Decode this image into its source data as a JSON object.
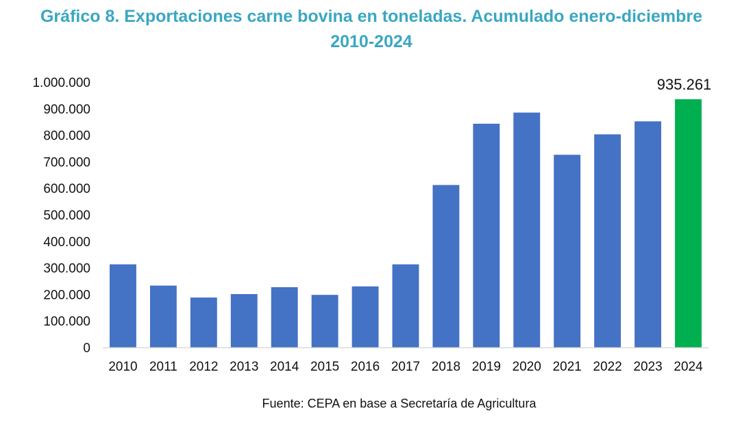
{
  "title": {
    "line1": "Gráfico 8. Exportaciones carne bovina en toneladas. Acumulado enero-diciembre",
    "line2": "2010-2024"
  },
  "source": "Fuente: CEPA en base a Secretaría de Agricultura",
  "colors": {
    "title": "#3aa7c2",
    "bar": "#4472c4",
    "highlight_bar": "#00b050",
    "axis": "#d9d9d9"
  },
  "chart_data": {
    "type": "bar",
    "categories": [
      "2010",
      "2011",
      "2012",
      "2013",
      "2014",
      "2015",
      "2016",
      "2017",
      "2018",
      "2019",
      "2020",
      "2021",
      "2022",
      "2023",
      "2024"
    ],
    "values": [
      313000,
      233000,
      188000,
      201000,
      227000,
      198000,
      230000,
      313000,
      612000,
      843000,
      885000,
      726000,
      803000,
      852000,
      935261
    ],
    "ylim": [
      0,
      1000000
    ],
    "yticks": [
      0,
      100000,
      200000,
      300000,
      400000,
      500000,
      600000,
      700000,
      800000,
      900000,
      1000000
    ],
    "ytick_labels": [
      "0",
      "100.000",
      "200.000",
      "300.000",
      "400.000",
      "500.000",
      "600.000",
      "700.000",
      "800.000",
      "900.000",
      "1.000.000"
    ],
    "highlight_index": 14,
    "data_labels": [
      {
        "index": 14,
        "text": "935.261"
      }
    ],
    "grid": false,
    "legend": "none"
  }
}
